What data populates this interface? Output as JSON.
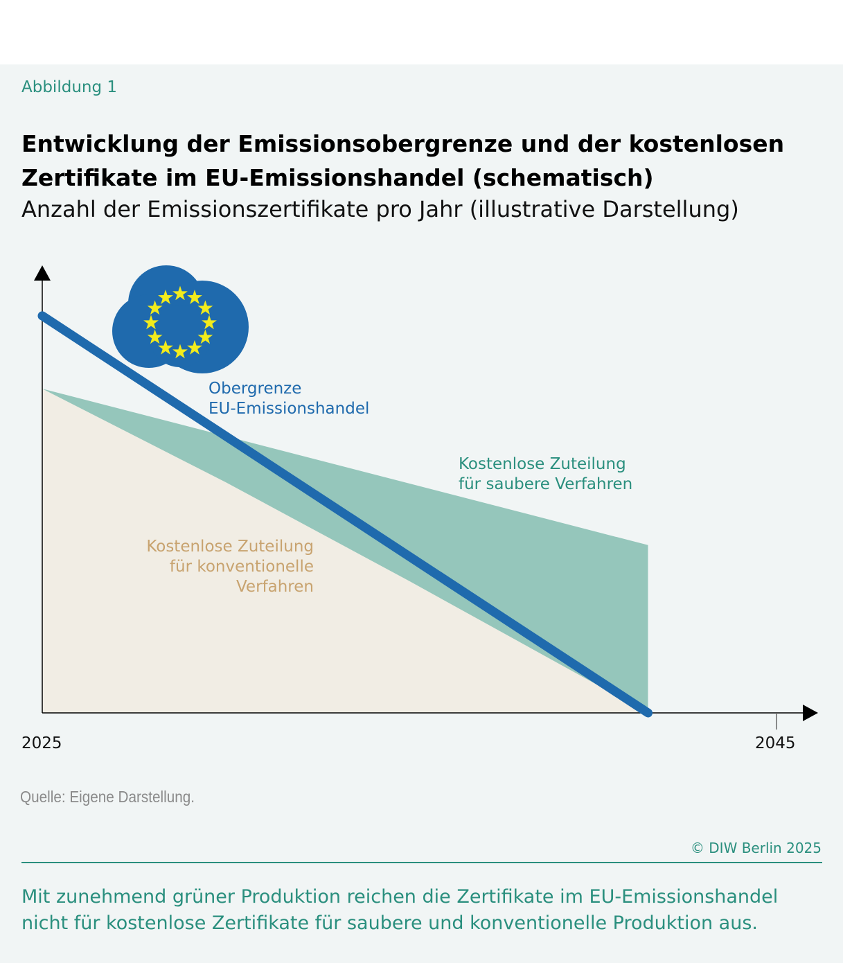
{
  "header": {
    "figure_label": "Abbildung 1",
    "title": "Entwicklung der Emissionsobergrenze und der kostenlosen Zertifikate im EU-Emissionshandel (schematisch)",
    "subtitle": "Anzahl der Emissionszertifikate pro Jahr (illustrative Darstellung)"
  },
  "chart_data": {
    "type": "area",
    "schematic": true,
    "xlim": [
      2025,
      2045
    ],
    "ylim": [
      0,
      100
    ],
    "x_tick_labels": [
      "2025",
      "2045"
    ],
    "series": [
      {
        "name": "Obergrenze EU-Emissionshandel",
        "kind": "line",
        "color": "#1f6aad",
        "points": [
          [
            2025,
            90.4
          ],
          [
            2041.5,
            0
          ]
        ]
      },
      {
        "name": "Kostenlose Zuteilung für konventionelle Verfahren",
        "kind": "area",
        "color": "#f1ede4",
        "label_color": "#c8a36f",
        "points": [
          [
            2025,
            73.8
          ],
          [
            2030,
            52.5
          ],
          [
            2035,
            30
          ],
          [
            2041.5,
            0
          ]
        ]
      },
      {
        "name": "Kostenlose Zuteilung für saubere Verfahren",
        "kind": "stacked-area-top",
        "color": "#95c6bb",
        "label_color": "#2a8f7e",
        "points": [
          [
            2025,
            73.8
          ],
          [
            2041.5,
            38.2
          ]
        ]
      }
    ],
    "labels": {
      "cap": [
        "Obergrenze",
        "EU-Emissionshandel"
      ],
      "clean": [
        "Kostenlose Zuteilung",
        "für saubere Verfahren"
      ],
      "conventional": [
        "Kostenlose Zuteilung",
        "für konventionelle",
        "Verfahren"
      ]
    },
    "icon": "eu-flag-cloud-icon"
  },
  "footer": {
    "source": "Quelle: Eigene Darstellung.",
    "copyright": "© DIW Berlin 2025",
    "caption": "Mit zunehmend grüner Produktion reichen die Zertifikate im EU-Emissionshandel nicht für kostenlose Zertifikate für saubere und konventionelle Produktion aus."
  }
}
